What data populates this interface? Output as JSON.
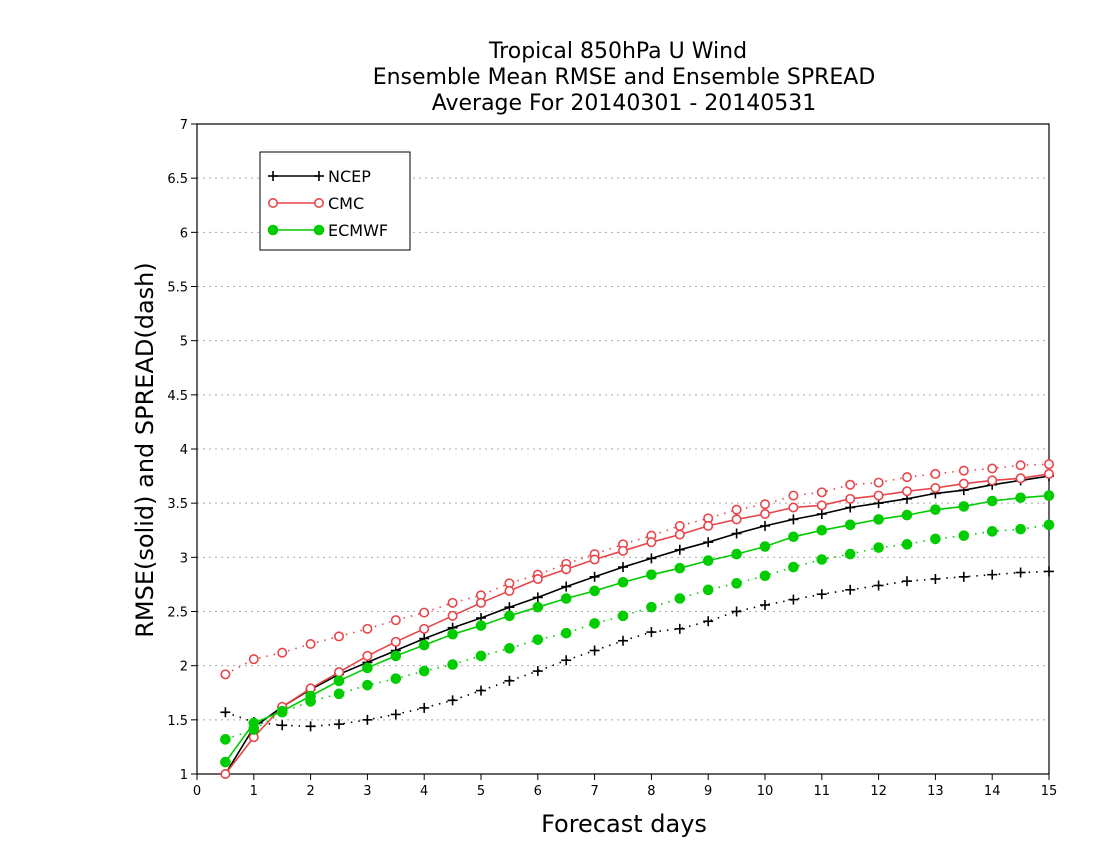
{
  "chart_data": {
    "type": "line",
    "title": [
      "Tropical 850hPa U Wind",
      "Ensemble Mean RMSE and Ensemble SPREAD",
      "Average For 20140301 - 20140531"
    ],
    "xlabel": "Forecast days",
    "ylabel": "RMSE(solid) and SPREAD(dash)",
    "xlim": [
      0,
      15
    ],
    "ylim": [
      1,
      7
    ],
    "xticks": [
      "0",
      "1",
      "2",
      "3",
      "4",
      "5",
      "6",
      "7",
      "8",
      "9",
      "10",
      "11",
      "12",
      "13",
      "14",
      "15"
    ],
    "yticks": [
      "1",
      "1.5",
      "2",
      "2.5",
      "3",
      "3.5",
      "4",
      "4.5",
      "5",
      "5.5",
      "6",
      "6.5",
      "7"
    ],
    "grid": true,
    "legend_position": "top-left",
    "x": [
      0.5,
      1,
      1.5,
      2,
      2.5,
      3,
      3.5,
      4,
      4.5,
      5,
      5.5,
      6,
      6.5,
      7,
      7.5,
      8,
      8.5,
      9,
      9.5,
      10,
      10.5,
      11,
      11.5,
      12,
      12.5,
      13,
      13.5,
      14,
      14.5,
      15
    ],
    "series": [
      {
        "name": "NCEP",
        "color": "#000000",
        "marker": "plus",
        "rmse": [
          1.0,
          1.43,
          1.62,
          1.78,
          1.92,
          2.03,
          2.14,
          2.25,
          2.35,
          2.44,
          2.54,
          2.63,
          2.73,
          2.82,
          2.91,
          2.99,
          3.07,
          3.14,
          3.22,
          3.29,
          3.35,
          3.4,
          3.46,
          3.5,
          3.54,
          3.59,
          3.62,
          3.67,
          3.71,
          3.75
        ],
        "spread": [
          1.57,
          1.48,
          1.45,
          1.44,
          1.46,
          1.5,
          1.55,
          1.61,
          1.68,
          1.77,
          1.86,
          1.95,
          2.05,
          2.14,
          2.23,
          2.31,
          2.34,
          2.41,
          2.5,
          2.56,
          2.61,
          2.66,
          2.7,
          2.74,
          2.78,
          2.8,
          2.82,
          2.84,
          2.86,
          2.87
        ]
      },
      {
        "name": "CMC",
        "color": "#e8454a",
        "marker": "open-circle",
        "rmse": [
          1.0,
          1.34,
          1.62,
          1.79,
          1.94,
          2.09,
          2.22,
          2.34,
          2.46,
          2.58,
          2.69,
          2.8,
          2.89,
          2.98,
          3.06,
          3.14,
          3.21,
          3.29,
          3.35,
          3.4,
          3.46,
          3.48,
          3.54,
          3.57,
          3.61,
          3.64,
          3.68,
          3.71,
          3.73,
          3.77
        ],
        "spread": [
          1.92,
          2.06,
          2.12,
          2.2,
          2.27,
          2.34,
          2.42,
          2.49,
          2.58,
          2.65,
          2.76,
          2.84,
          2.94,
          3.03,
          3.12,
          3.2,
          3.29,
          3.36,
          3.44,
          3.49,
          3.57,
          3.6,
          3.67,
          3.69,
          3.74,
          3.77,
          3.8,
          3.82,
          3.85,
          3.86
        ]
      },
      {
        "name": "ECMWF",
        "color": "#00cc00",
        "marker": "filled-circle",
        "rmse": [
          1.11,
          1.47,
          1.58,
          1.72,
          1.86,
          1.98,
          2.09,
          2.19,
          2.29,
          2.37,
          2.46,
          2.54,
          2.62,
          2.69,
          2.77,
          2.84,
          2.9,
          2.97,
          3.03,
          3.1,
          3.19,
          3.25,
          3.3,
          3.35,
          3.39,
          3.44,
          3.47,
          3.52,
          3.55,
          3.57
        ],
        "spread": [
          1.32,
          1.41,
          1.57,
          1.67,
          1.74,
          1.82,
          1.88,
          1.95,
          2.01,
          2.09,
          2.16,
          2.24,
          2.3,
          2.39,
          2.46,
          2.54,
          2.62,
          2.7,
          2.76,
          2.83,
          2.91,
          2.98,
          3.03,
          3.09,
          3.12,
          3.17,
          3.2,
          3.24,
          3.26,
          3.3
        ]
      }
    ]
  }
}
